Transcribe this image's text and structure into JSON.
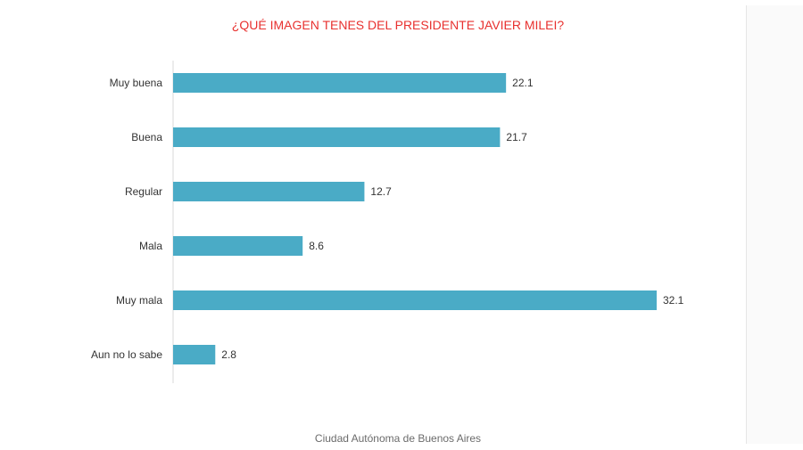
{
  "chart_data": {
    "type": "bar",
    "orientation": "horizontal",
    "title": "¿QUÉ IMAGEN TENES DEL PRESIDENTE JAVIER MILEI?",
    "categories": [
      "Muy buena",
      "Buena",
      "Regular",
      "Mala",
      "Muy mala",
      "Aun no lo sabe"
    ],
    "values": [
      22.1,
      21.7,
      12.7,
      8.6,
      32.1,
      2.8
    ],
    "value_labels": [
      "22.1",
      "21.7",
      "12.7",
      "8.6",
      "32.1",
      "2.8"
    ],
    "xlim": [
      0,
      32.1
    ],
    "grid": false,
    "bar_color": "#4aabc6",
    "title_color": "#e8312f"
  },
  "footer": {
    "text": "Ciudad Autónoma de Buenos Aires"
  }
}
